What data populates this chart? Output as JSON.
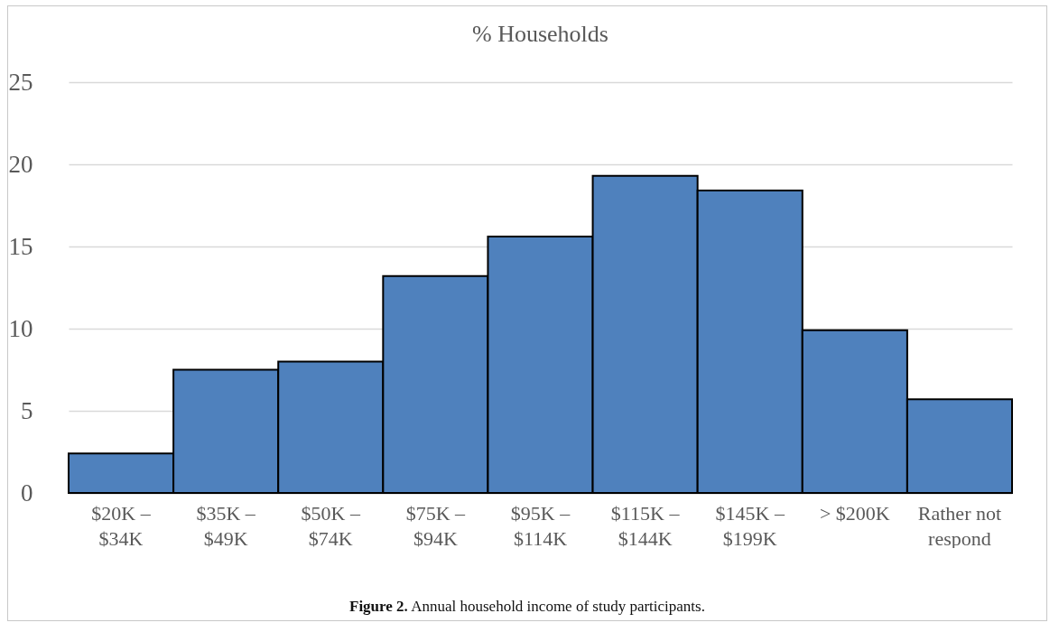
{
  "chart_data": {
    "type": "bar",
    "title": "% Households",
    "categories": [
      "$20K – $34K",
      "$35K – $49K",
      "$50K – $74K",
      "$75K – $94K",
      "$95K – $114K",
      "$115K – $144K",
      "$145K – $199K",
      "> $200K",
      "Rather not respond"
    ],
    "values": [
      2.4,
      7.5,
      8.0,
      13.2,
      15.6,
      19.3,
      18.4,
      9.9,
      5.7
    ],
    "color": "#4f81bd",
    "ylim": [
      0,
      25
    ],
    "yticks": [
      0,
      5,
      10,
      15,
      20,
      25
    ],
    "grid": "y",
    "annotations": [
      "Figure 2. Annual household income of study participants."
    ]
  }
}
